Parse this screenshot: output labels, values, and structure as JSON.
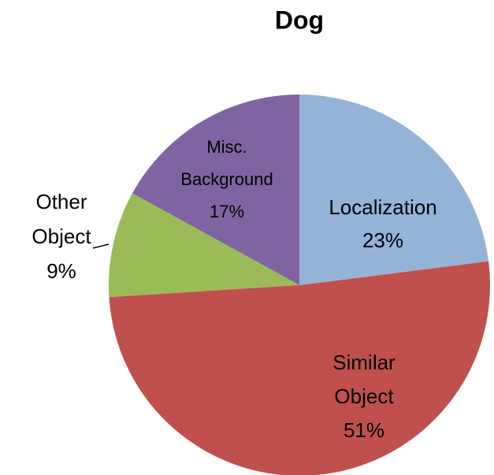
{
  "chart_data": {
    "type": "pie",
    "title": "Dog",
    "categories": [
      "Localization",
      "Similar Object",
      "Other Object",
      "Misc. Background"
    ],
    "values": [
      23,
      51,
      9,
      17
    ],
    "value_labels": [
      "23%",
      "51%",
      "9%",
      "17%"
    ],
    "colors": [
      "#95b3d7",
      "#c0504d",
      "#9bbb59",
      "#8064a2"
    ]
  }
}
